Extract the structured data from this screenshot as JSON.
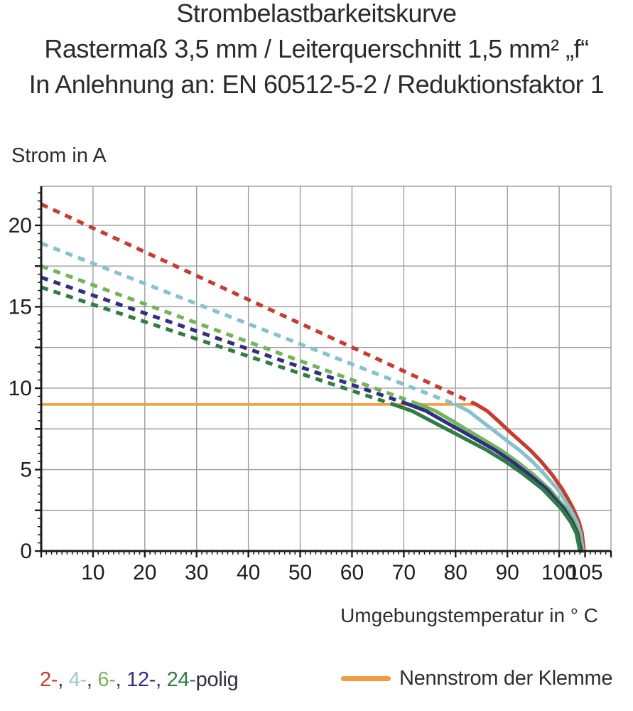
{
  "header": {
    "title": "Strombelastbarkeitskurve",
    "subtitle": "Rastermaß 3,5 mm / Leiterquerschnitt 1,5 mm² „f“",
    "standard": "In Anlehnung an: EN 60512-5-2 / Reduktionsfaktor 1"
  },
  "chart_data": {
    "type": "line",
    "title": "Strombelastbarkeitskurve",
    "xlabel": "Umgebungstemperatur in ° C",
    "ylabel": "Strom in A",
    "xlim": [
      0,
      110
    ],
    "ylim": [
      0,
      22.4
    ],
    "x_ticks": [
      10,
      20,
      30,
      40,
      50,
      60,
      70,
      80,
      90,
      100,
      105
    ],
    "y_ticks": [
      0,
      5,
      10,
      15,
      20
    ],
    "x_grid_step": 10,
    "y_grid_step": 2.5,
    "x_minor_step": 1,
    "y_minor_step": 0.5,
    "grid": true,
    "grid_color": "#9c9c9c",
    "axis_color": "#1a1a1a",
    "rated_current": {
      "label": "Nennstrom der Klemme",
      "value": 9,
      "x_start": 0,
      "x_end": 84,
      "color": "#F09C3C"
    },
    "series": [
      {
        "name": "2-polig",
        "poles": 2,
        "color": "#CC392E",
        "dashed": [
          [
            0,
            21.3
          ],
          [
            84,
            9
          ]
        ],
        "solid": [
          [
            84,
            9
          ],
          [
            86.1,
            8.6
          ],
          [
            88.2,
            8.0
          ],
          [
            90.2,
            7.4
          ],
          [
            92.3,
            6.8
          ],
          [
            94.4,
            6.2
          ],
          [
            96.5,
            5.5
          ],
          [
            98.6,
            4.7
          ],
          [
            100.6,
            3.8
          ],
          [
            101.7,
            3.2
          ],
          [
            102.7,
            2.6
          ],
          [
            103.8,
            1.8
          ],
          [
            104.4,
            1.1
          ],
          [
            104.8,
            0
          ]
        ]
      },
      {
        "name": "4-polig",
        "poles": 4,
        "color": "#84C3CC",
        "dashed": [
          [
            0,
            18.9
          ],
          [
            80,
            9
          ]
        ],
        "solid": [
          [
            80,
            9
          ],
          [
            82.5,
            8.6
          ],
          [
            84.9,
            8.0
          ],
          [
            87.4,
            7.4
          ],
          [
            89.8,
            6.8
          ],
          [
            92.3,
            6.2
          ],
          [
            94.8,
            5.5
          ],
          [
            97.2,
            4.7
          ],
          [
            99.7,
            3.8
          ],
          [
            100.9,
            3.2
          ],
          [
            102.1,
            2.6
          ],
          [
            103.4,
            1.8
          ],
          [
            104.1,
            1.1
          ],
          [
            104.6,
            0
          ]
        ]
      },
      {
        "name": "6-polig",
        "poles": 6,
        "color": "#72B458",
        "dashed": [
          [
            0,
            17.5
          ],
          [
            73,
            9
          ]
        ],
        "solid": [
          [
            73,
            9
          ],
          [
            76.1,
            8.6
          ],
          [
            79.3,
            8.0
          ],
          [
            82.4,
            7.4
          ],
          [
            85.6,
            6.8
          ],
          [
            88.7,
            6.2
          ],
          [
            91.8,
            5.5
          ],
          [
            95.0,
            4.7
          ],
          [
            98.1,
            3.8
          ],
          [
            99.7,
            3.2
          ],
          [
            101.3,
            2.6
          ],
          [
            102.8,
            1.8
          ],
          [
            103.8,
            1.1
          ],
          [
            104.4,
            0
          ]
        ]
      },
      {
        "name": "12-polig",
        "poles": 12,
        "color": "#322E85",
        "dashed": [
          [
            0,
            16.8
          ],
          [
            71,
            9
          ]
        ],
        "solid": [
          [
            71,
            9
          ],
          [
            74.3,
            8.6
          ],
          [
            77.6,
            8.0
          ],
          [
            81.0,
            7.4
          ],
          [
            84.3,
            6.8
          ],
          [
            87.6,
            6.2
          ],
          [
            90.9,
            5.5
          ],
          [
            94.2,
            4.7
          ],
          [
            97.6,
            3.8
          ],
          [
            99.2,
            3.2
          ],
          [
            100.9,
            2.6
          ],
          [
            102.5,
            1.8
          ],
          [
            103.5,
            1.1
          ],
          [
            104.2,
            0
          ]
        ]
      },
      {
        "name": "24-polig",
        "poles": 24,
        "color": "#2F7D41",
        "dashed": [
          [
            0,
            16.2
          ],
          [
            68,
            9
          ]
        ],
        "solid": [
          [
            68,
            9
          ],
          [
            71.6,
            8.6
          ],
          [
            75.2,
            8.0
          ],
          [
            78.8,
            7.4
          ],
          [
            82.4,
            6.8
          ],
          [
            86.0,
            6.2
          ],
          [
            89.6,
            5.5
          ],
          [
            93.2,
            4.7
          ],
          [
            96.8,
            3.8
          ],
          [
            98.6,
            3.2
          ],
          [
            100.4,
            2.6
          ],
          [
            102.2,
            1.8
          ],
          [
            103.3,
            1.1
          ],
          [
            104.0,
            0
          ]
        ]
      }
    ]
  },
  "legend": {
    "segments": [
      {
        "text": "2-",
        "color": "#CC392E"
      },
      {
        "text": ", ",
        "color": "#3a3a3a"
      },
      {
        "text": "4-",
        "color": "#9FC9D2"
      },
      {
        "text": ", ",
        "color": "#3a3a3a"
      },
      {
        "text": "6-",
        "color": "#72B458"
      },
      {
        "text": ", ",
        "color": "#3a3a3a"
      },
      {
        "text": "12-",
        "color": "#322E85"
      },
      {
        "text": ", ",
        "color": "#3a3a3a"
      },
      {
        "text": "24-",
        "color": "#2F7D41"
      },
      {
        "text": "polig",
        "color": "#2f2f3f"
      }
    ],
    "rated_label": "Nennstrom der Klemme"
  }
}
